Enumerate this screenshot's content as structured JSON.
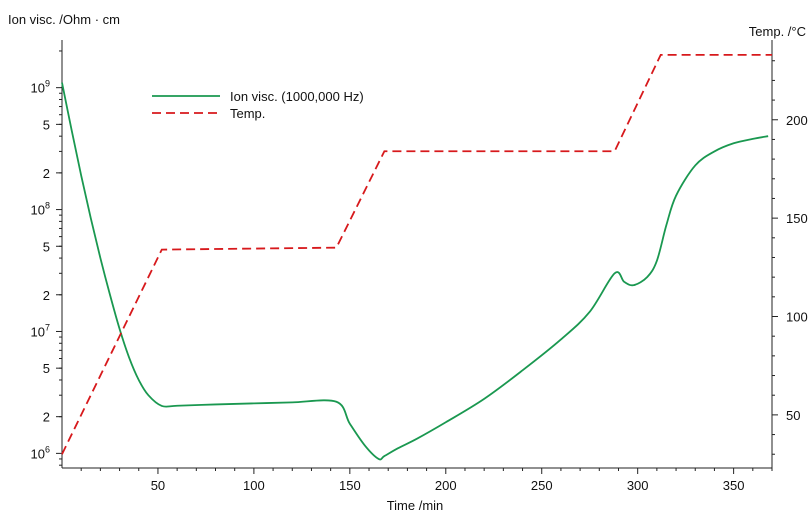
{
  "chart_data": {
    "type": "line",
    "xlabel": "Time /min",
    "ylabel_left": "Ion visc. /Ohm · cm",
    "ylabel_right": "Temp. /°C",
    "xlim": [
      0,
      370
    ],
    "ylim_left_log10": [
      5.88,
      9.35
    ],
    "ylim_right": [
      23,
      238
    ],
    "y_left_scale": "log",
    "x_ticks": [
      50,
      100,
      150,
      200,
      250,
      300,
      350
    ],
    "y_left_ticks": [
      {
        "log": 6.0,
        "label": "10",
        "exp": "6"
      },
      {
        "log": 6.30103,
        "label": "2",
        "exp": ""
      },
      {
        "log": 6.69897,
        "label": "5",
        "exp": ""
      },
      {
        "log": 7.0,
        "label": "10",
        "exp": "7"
      },
      {
        "log": 7.30103,
        "label": "2",
        "exp": ""
      },
      {
        "log": 7.69897,
        "label": "5",
        "exp": ""
      },
      {
        "log": 8.0,
        "label": "10",
        "exp": "8"
      },
      {
        "log": 8.30103,
        "label": "2",
        "exp": ""
      },
      {
        "log": 8.69897,
        "label": "5",
        "exp": ""
      },
      {
        "log": 9.0,
        "label": "10",
        "exp": "9"
      }
    ],
    "y_right_ticks": [
      50,
      100,
      150,
      200
    ],
    "grid": false,
    "legend_position": "top-left",
    "series": [
      {
        "name": "Ion visc. (1000,000 Hz)",
        "axis": "left",
        "color": "#1a9850",
        "style": "solid",
        "x": [
          0,
          5,
          10,
          15,
          20,
          25,
          30,
          35,
          40,
          45,
          52,
          60,
          80,
          100,
          120,
          143,
          150,
          158,
          165,
          168,
          175,
          185,
          200,
          220,
          240,
          260,
          275,
          288,
          293,
          298,
          305,
          310,
          315,
          320,
          330,
          340,
          350,
          360,
          368
        ],
        "y": [
          1100000000.0,
          450000000.0,
          190000000.0,
          85000000.0,
          40000000.0,
          20000000.0,
          10500000.0,
          6100000.0,
          4000000.0,
          3000000.0,
          2450000.0,
          2460000.0,
          2520000.0,
          2570000.0,
          2620000.0,
          2650000.0,
          1750000.0,
          1150000.0,
          900000.0,
          950000.0,
          1100000.0,
          1320000.0,
          1800000.0,
          2800000.0,
          4800000.0,
          8600000.0,
          14500000.0,
          30000000.0,
          25500000.0,
          24000000.0,
          28000000.0,
          38000000.0,
          75000000.0,
          130000000.0,
          230000000.0,
          300000000.0,
          350000000.0,
          380000000.0,
          400000000.0
        ]
      },
      {
        "name": "Temp.",
        "axis": "right",
        "color": "#d7191c",
        "style": "dashed",
        "x": [
          0,
          52,
          143,
          168,
          288,
          312,
          370
        ],
        "y": [
          30,
          134,
          135,
          184,
          184,
          233,
          233
        ]
      }
    ]
  }
}
